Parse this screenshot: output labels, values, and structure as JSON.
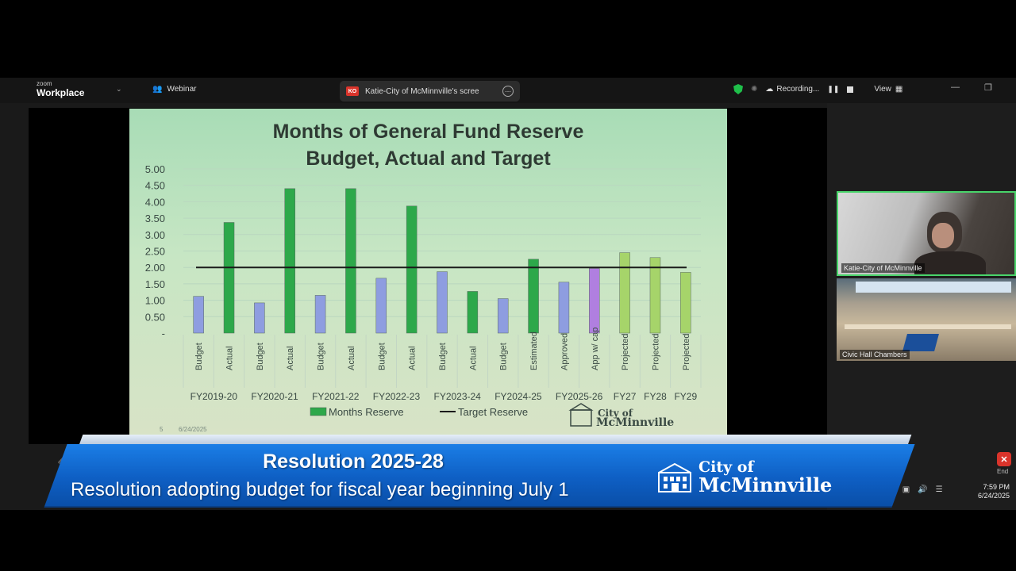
{
  "zoom": {
    "logo_line1": "zoom",
    "logo_line2": "Workplace",
    "webinar_label": "Webinar",
    "share_badge": "KO",
    "share_label": "Katie-City of McMinnville's scree",
    "recording_label": "Recording...",
    "view_label": "View"
  },
  "slide": {
    "title_line1": "Months of General Fund Reserve",
    "title_line2": "Budget, Actual and Target",
    "logo_city": "City of",
    "logo_name": "McMinnville",
    "footer_page": "5",
    "footer_date": "6/24/2025"
  },
  "chart_data": {
    "type": "bar",
    "title": "Months of General Fund Reserve Budget, Actual and Target",
    "ylim": [
      0,
      5
    ],
    "yticks": [
      "5.00",
      "4.50",
      "4.00",
      "3.50",
      "3.00",
      "2.50",
      "2.00",
      "1.50",
      "1.00",
      "0.50",
      "-"
    ],
    "categories": [
      "Budget",
      "Actual",
      "Budget",
      "Actual",
      "Budget",
      "Actual",
      "Budget",
      "Actual",
      "Budget",
      "Actual",
      "Budget",
      "Estimated",
      "Approved",
      "App w/ cap",
      "Projected",
      "Projected",
      "Projected"
    ],
    "values": [
      1.12,
      3.37,
      0.92,
      4.4,
      1.15,
      4.4,
      1.67,
      3.87,
      1.87,
      1.27,
      1.05,
      2.25,
      1.55,
      1.97,
      2.45,
      2.3,
      1.85
    ],
    "colors": [
      "#8e9de0",
      "#2da84a",
      "#8e9de0",
      "#2da84a",
      "#8e9de0",
      "#2da84a",
      "#8e9de0",
      "#2da84a",
      "#8e9de0",
      "#2da84a",
      "#8e9de0",
      "#2da84a",
      "#8e9de0",
      "#b07fe0",
      "#a6d46a",
      "#a6d46a",
      "#a6d46a"
    ],
    "groups": [
      "FY2019-20",
      "FY2020-21",
      "FY2021-22",
      "FY2022-23",
      "FY2023-24",
      "FY2024-25",
      "FY2025-26",
      "FY27",
      "FY28",
      "FY29"
    ],
    "group_spans": [
      2,
      2,
      2,
      2,
      2,
      2,
      2,
      1,
      1,
      1
    ],
    "target_reserve": 2.0,
    "legend": [
      "Months Reserve",
      "Target Reserve"
    ],
    "grid": true
  },
  "tiles": {
    "tile1_name": "Katie-City of McMinnville",
    "tile2_name": "Civic Hall Chambers"
  },
  "taskbar": {
    "end_label": "End",
    "time": "7:59 PM",
    "date": "6/24/2025"
  },
  "banner": {
    "title": "Resolution 2025-28",
    "subtitle": "Resolution adopting budget for fiscal year beginning July 1",
    "logo_city": "City of",
    "logo_name": "McMinnville"
  },
  "colors": {
    "banner_blue": "#0e5fc4",
    "slide_green": "#a8dcb6",
    "bar_budget": "#8e9de0",
    "bar_actual": "#2da84a",
    "bar_projected": "#a6d46a",
    "bar_cap": "#b07fe0",
    "active_speaker": "#49d46a"
  }
}
